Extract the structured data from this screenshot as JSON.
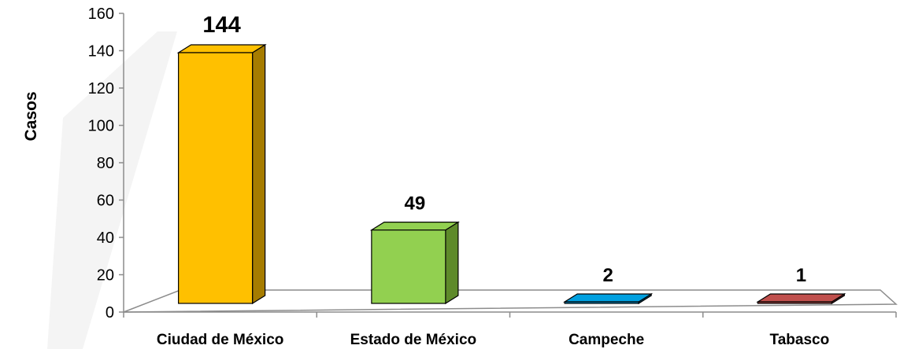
{
  "chart_data": {
    "type": "bar",
    "style": "3d-column",
    "categories": [
      "Ciudad de México",
      "Estado de México",
      "Campeche",
      "Tabasco"
    ],
    "values": [
      144,
      49,
      2,
      1
    ],
    "data_labels": [
      "144",
      "49",
      "2",
      "1"
    ],
    "ylabel": "Casos",
    "xlabel": "",
    "ylim": [
      0,
      160
    ],
    "yticks": [
      "0",
      "20",
      "40",
      "60",
      "80",
      "100",
      "120",
      "140",
      "160"
    ],
    "grid": false,
    "legend": "none",
    "colors": [
      "#FFC000",
      "#92D050",
      "#00A0E0",
      "#C0504D"
    ],
    "side_colors": [
      "#A67C00",
      "#5E8A2A",
      "#006E96",
      "#7A3230"
    ]
  }
}
